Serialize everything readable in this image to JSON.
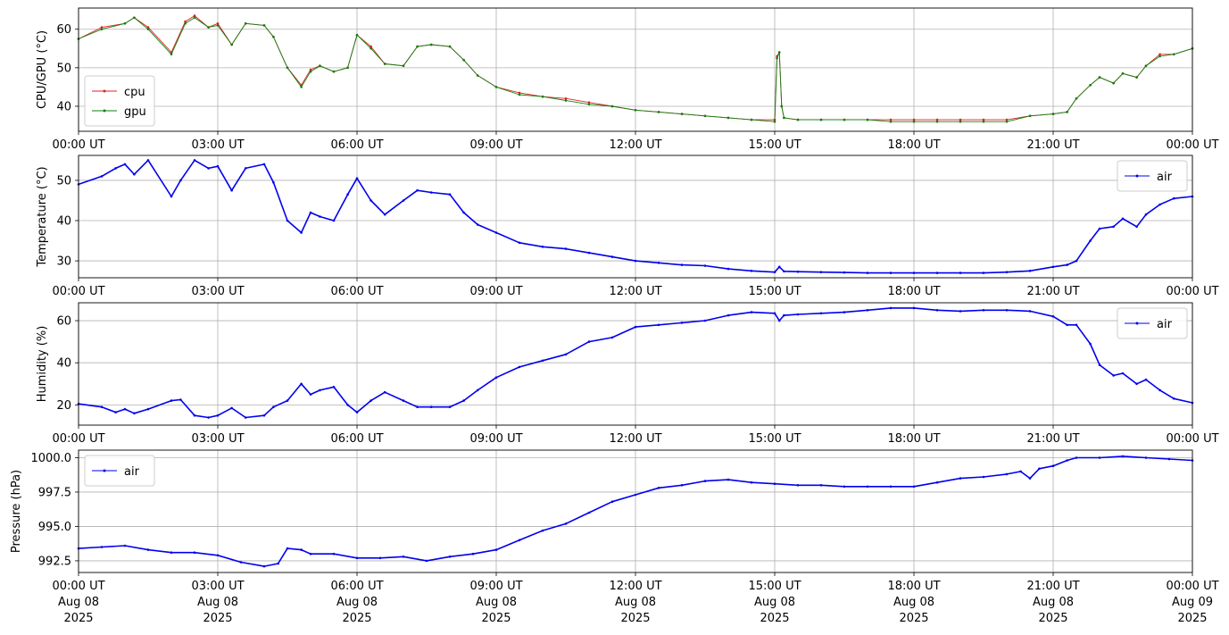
{
  "x_ticks": [
    "00:00 UT",
    "03:00 UT",
    "06:00 UT",
    "09:00 UT",
    "12:00 UT",
    "15:00 UT",
    "18:00 UT",
    "21:00 UT",
    "00:00 UT"
  ],
  "bottom_x_ticks": [
    {
      "time": "00:00 UT",
      "date": "Aug 08",
      "year": "2025"
    },
    {
      "time": "03:00 UT",
      "date": "Aug 08",
      "year": "2025"
    },
    {
      "time": "06:00 UT",
      "date": "Aug 08",
      "year": "2025"
    },
    {
      "time": "09:00 UT",
      "date": "Aug 08",
      "year": "2025"
    },
    {
      "time": "12:00 UT",
      "date": "Aug 08",
      "year": "2025"
    },
    {
      "time": "15:00 UT",
      "date": "Aug 08",
      "year": "2025"
    },
    {
      "time": "18:00 UT",
      "date": "Aug 08",
      "year": "2025"
    },
    {
      "time": "21:00 UT",
      "date": "Aug 08",
      "year": "2025"
    },
    {
      "time": "00:00 UT",
      "date": "Aug 09",
      "year": "2025"
    }
  ],
  "chart_data": [
    {
      "type": "line",
      "ylabel": "CPU/GPU (°C)",
      "ylim": [
        33.5,
        65.5
      ],
      "yticks": [
        "40",
        "50",
        "60"
      ],
      "ytick_values": [
        40,
        50,
        60
      ],
      "grid": true,
      "legend": "lower-left",
      "x_unit": "hours since 2025-08-08 00:00 UT",
      "xlim": [
        0,
        24
      ],
      "series": [
        {
          "name": "cpu",
          "color": "#e02020",
          "x": [
            0,
            0.5,
            1,
            1.2,
            1.5,
            2,
            2.3,
            2.5,
            2.8,
            3,
            3.3,
            3.6,
            4,
            4.2,
            4.5,
            4.8,
            5,
            5.2,
            5.5,
            5.8,
            6,
            6.3,
            6.6,
            7,
            7.3,
            7.6,
            8,
            8.3,
            8.6,
            9,
            9.5,
            10,
            10.5,
            11,
            11.5,
            12,
            12.5,
            13,
            13.5,
            14,
            14.5,
            15,
            15.05,
            15.1,
            15.15,
            15.2,
            15.5,
            16,
            16.5,
            17,
            17.5,
            18,
            18.5,
            19,
            19.5,
            20,
            20.5,
            21,
            21.3,
            21.5,
            21.8,
            22,
            22.3,
            22.5,
            22.8,
            23,
            23.3,
            23.6,
            24
          ],
          "values": [
            57.5,
            60.5,
            61.5,
            63,
            60.5,
            54,
            62,
            63.5,
            60.5,
            61.5,
            56,
            61.5,
            61,
            58,
            50,
            45.5,
            49.5,
            50.5,
            49,
            50,
            58.5,
            55.5,
            51,
            50.5,
            55.5,
            56,
            55.5,
            52,
            48,
            45,
            43.5,
            42.5,
            42,
            41,
            40,
            39,
            38.5,
            38,
            37.5,
            37,
            36.5,
            36.5,
            53,
            54,
            40,
            37,
            36.5,
            36.5,
            36.5,
            36.5,
            36.5,
            36.5,
            36.5,
            36.5,
            36.5,
            36.5,
            37.5,
            38,
            38.5,
            42,
            45.5,
            47.5,
            46,
            48.5,
            47.5,
            50.5,
            53.5,
            53.5,
            55
          ]
        },
        {
          "name": "gpu",
          "color": "#108010",
          "x": [
            0,
            0.5,
            1,
            1.2,
            1.5,
            2,
            2.3,
            2.5,
            2.8,
            3,
            3.3,
            3.6,
            4,
            4.2,
            4.5,
            4.8,
            5,
            5.2,
            5.5,
            5.8,
            6,
            6.3,
            6.6,
            7,
            7.3,
            7.6,
            8,
            8.3,
            8.6,
            9,
            9.5,
            10,
            10.5,
            11,
            11.5,
            12,
            12.5,
            13,
            13.5,
            14,
            14.5,
            15,
            15.05,
            15.1,
            15.15,
            15.2,
            15.5,
            16,
            16.5,
            17,
            17.5,
            18,
            18.5,
            19,
            19.5,
            20,
            20.5,
            21,
            21.3,
            21.5,
            21.8,
            22,
            22.3,
            22.5,
            22.8,
            23,
            23.3,
            23.6,
            24
          ],
          "values": [
            57.5,
            60,
            61.5,
            63,
            60,
            53.5,
            61.5,
            63,
            60.5,
            61,
            56,
            61.5,
            61,
            58,
            50,
            45,
            49,
            50.5,
            49,
            50,
            58.5,
            55,
            51,
            50.5,
            55.5,
            56,
            55.5,
            52,
            48,
            45,
            43,
            42.5,
            41.5,
            40.5,
            40,
            39,
            38.5,
            38,
            37.5,
            37,
            36.5,
            36,
            52.5,
            54,
            40,
            37,
            36.5,
            36.5,
            36.5,
            36.5,
            36,
            36,
            36,
            36,
            36,
            36,
            37.5,
            38,
            38.5,
            42,
            45.5,
            47.5,
            46,
            48.5,
            47.5,
            50.5,
            53,
            53.5,
            55
          ]
        }
      ]
    },
    {
      "type": "line",
      "ylabel": "Temperature (°C)",
      "ylim": [
        25.8,
        56.2
      ],
      "yticks": [
        "30",
        "40",
        "50"
      ],
      "ytick_values": [
        30,
        40,
        50
      ],
      "grid": true,
      "legend": "top-right",
      "x_unit": "hours since 2025-08-08 00:00 UT",
      "xlim": [
        0,
        24
      ],
      "series": [
        {
          "name": "air",
          "color": "#0000ee",
          "x": [
            0,
            0.5,
            0.8,
            1,
            1.2,
            1.5,
            2,
            2.2,
            2.5,
            2.8,
            3,
            3.3,
            3.6,
            4,
            4.2,
            4.5,
            4.8,
            5,
            5.2,
            5.5,
            5.8,
            6,
            6.3,
            6.6,
            7,
            7.3,
            7.6,
            8,
            8.3,
            8.6,
            9,
            9.5,
            10,
            10.5,
            11,
            11.5,
            12,
            12.5,
            13,
            13.5,
            14,
            14.5,
            15,
            15.1,
            15.2,
            15.5,
            16,
            16.5,
            17,
            17.5,
            18,
            18.5,
            19,
            19.5,
            20,
            20.5,
            21,
            21.3,
            21.5,
            21.8,
            22,
            22.3,
            22.5,
            22.8,
            23,
            23.3,
            23.6,
            24
          ],
          "values": [
            49,
            51,
            53,
            54,
            51.5,
            55,
            46,
            50,
            55,
            53,
            53.5,
            47.5,
            53,
            54,
            49.5,
            40,
            37,
            42,
            41,
            40,
            46.5,
            50.5,
            45,
            41.5,
            45,
            47.5,
            47,
            46.5,
            42,
            39,
            37,
            34.5,
            33.5,
            33,
            32,
            31,
            30,
            29.5,
            29,
            28.8,
            28,
            27.5,
            27.2,
            28.5,
            27.4,
            27.3,
            27.2,
            27.1,
            27,
            27,
            27,
            27,
            27,
            27,
            27.2,
            27.5,
            28.5,
            29,
            30,
            35,
            38,
            38.5,
            40.5,
            38.5,
            41.5,
            44,
            45.5,
            46
          ]
        }
      ]
    },
    {
      "type": "line",
      "ylabel": "Humidity (%)",
      "ylim": [
        10.4,
        68.5
      ],
      "yticks": [
        "20",
        "40",
        "60"
      ],
      "ytick_values": [
        20,
        40,
        60
      ],
      "grid": true,
      "legend": "top-right",
      "x_unit": "hours since 2025-08-08 00:00 UT",
      "xlim": [
        0,
        24
      ],
      "series": [
        {
          "name": "air",
          "color": "#0000ee",
          "x": [
            0,
            0.5,
            0.8,
            1,
            1.2,
            1.5,
            2,
            2.2,
            2.5,
            2.8,
            3,
            3.3,
            3.6,
            4,
            4.2,
            4.5,
            4.8,
            5,
            5.2,
            5.5,
            5.8,
            6,
            6.3,
            6.6,
            7,
            7.3,
            7.6,
            8,
            8.3,
            8.6,
            9,
            9.5,
            10,
            10.5,
            11,
            11.5,
            12,
            12.5,
            13,
            13.5,
            14,
            14.5,
            15,
            15.1,
            15.2,
            15.5,
            16,
            16.5,
            17,
            17.5,
            18,
            18.5,
            19,
            19.5,
            20,
            20.5,
            21,
            21.3,
            21.5,
            21.8,
            22,
            22.3,
            22.5,
            22.8,
            23,
            23.3,
            23.6,
            24
          ],
          "values": [
            20.5,
            19,
            16.5,
            18,
            16,
            18,
            22,
            22.5,
            15,
            14,
            15,
            18.5,
            14,
            15,
            19,
            22,
            30,
            25,
            27,
            28.5,
            20,
            16.5,
            22,
            26,
            22,
            19,
            19,
            19,
            22,
            27,
            33,
            38,
            41,
            44,
            50,
            52,
            57,
            58,
            59,
            60,
            62.5,
            64,
            63.5,
            60,
            62.5,
            63,
            63.5,
            64,
            65,
            66,
            66,
            65,
            64.5,
            65,
            65,
            64.5,
            62,
            58,
            58,
            49,
            39,
            34,
            35,
            30,
            32,
            27,
            23,
            21
          ]
        }
      ]
    },
    {
      "type": "line",
      "ylabel": "Pressure (hPa)",
      "ylim": [
        991.65,
        1000.55
      ],
      "yticks": [
        "992.5",
        "995.0",
        "997.5",
        "1000.0"
      ],
      "ytick_values": [
        992.5,
        995.0,
        997.5,
        1000.0
      ],
      "grid": true,
      "legend": "top-left",
      "x_unit": "hours since 2025-08-08 00:00 UT",
      "xlim": [
        0,
        24
      ],
      "series": [
        {
          "name": "air",
          "color": "#0000ee",
          "x": [
            0,
            0.5,
            1,
            1.5,
            2,
            2.5,
            3,
            3.5,
            4,
            4.3,
            4.5,
            4.8,
            5,
            5.5,
            6,
            6.5,
            7,
            7.5,
            8,
            8.5,
            9,
            9.5,
            10,
            10.5,
            11,
            11.5,
            12,
            12.5,
            13,
            13.5,
            14,
            14.5,
            15,
            15.5,
            16,
            16.5,
            17,
            17.5,
            18,
            18.5,
            19,
            19.5,
            20,
            20.3,
            20.5,
            20.7,
            21,
            21.3,
            21.5,
            22,
            22.5,
            23,
            23.5,
            24
          ],
          "values": [
            993.4,
            993.5,
            993.6,
            993.3,
            993.1,
            993.1,
            992.9,
            992.4,
            992.1,
            992.3,
            993.4,
            993.3,
            993.0,
            993.0,
            992.7,
            992.7,
            992.8,
            992.5,
            992.8,
            993.0,
            993.3,
            994.0,
            994.7,
            995.2,
            996.0,
            996.8,
            997.3,
            997.8,
            998.0,
            998.3,
            998.4,
            998.2,
            998.1,
            998.0,
            998.0,
            997.9,
            997.9,
            997.9,
            997.9,
            998.2,
            998.5,
            998.6,
            998.8,
            999.0,
            998.5,
            999.2,
            999.4,
            999.8,
            1000.0,
            1000.0,
            1000.1,
            1000.0,
            999.9,
            999.8
          ]
        }
      ]
    }
  ]
}
